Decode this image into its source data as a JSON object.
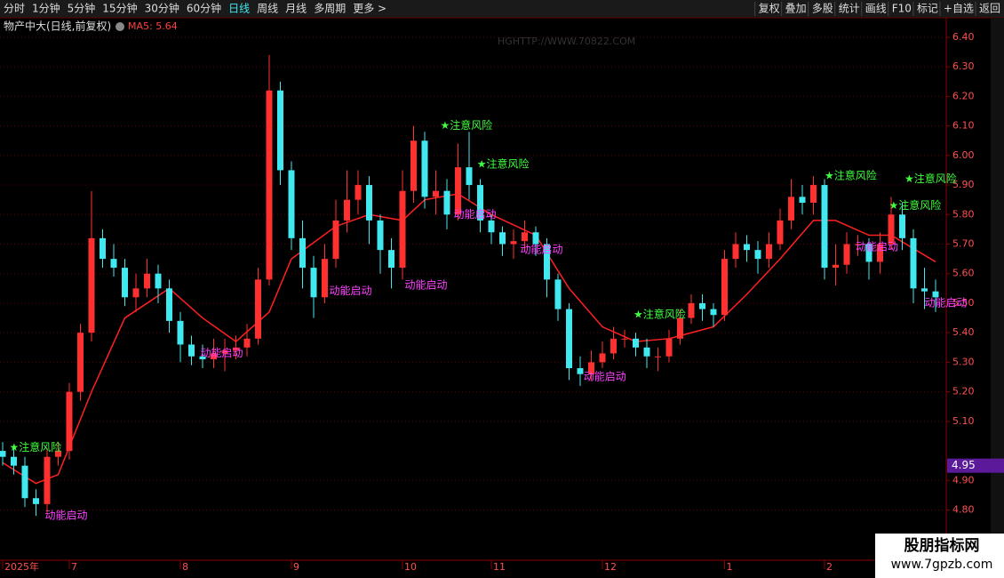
{
  "toolbar": {
    "tabs": [
      "分时",
      "1分钟",
      "5分钟",
      "15分钟",
      "30分钟",
      "60分钟",
      "日线",
      "周线",
      "月线",
      "多周期",
      "更多 >"
    ],
    "active_tab": 6,
    "buttons": [
      "复权",
      "叠加",
      "多股",
      "统计",
      "画线",
      "F10",
      "标记",
      "+自选",
      "返回"
    ]
  },
  "watermark": "HGHTTP://WWW.70822.COM",
  "logo": {
    "name": "股朋指标网",
    "url": "www.7gpzb.com"
  },
  "chart_data": {
    "type": "candlestick",
    "title": "物产中大(日线,前复权)",
    "ma_label": "MA5: 5.64",
    "ma_color": "#ff2020",
    "up_color": "#ff3030",
    "down_color": "#40e8f0",
    "categories": [
      "2025年",
      null,
      null,
      null,
      null,
      null,
      "7",
      null,
      null,
      null,
      null,
      null,
      null,
      null,
      null,
      null,
      "8",
      null,
      null,
      null,
      null,
      null,
      null,
      null,
      null,
      null,
      "9",
      null,
      null,
      null,
      null,
      null,
      null,
      null,
      null,
      null,
      "10",
      null,
      null,
      null,
      null,
      null,
      null,
      null,
      "11",
      null,
      null,
      null,
      null,
      null,
      null,
      null,
      null,
      null,
      "12",
      null,
      null,
      null,
      null,
      null,
      null,
      null,
      null,
      null,
      null,
      "1",
      null,
      null,
      null,
      null,
      null,
      null,
      null,
      null,
      "2",
      null,
      null,
      null,
      null,
      null,
      null,
      null,
      null,
      null,
      null
    ],
    "candles": [
      [
        5.0,
        5.03,
        4.95,
        4.98
      ],
      [
        4.98,
        5.01,
        4.92,
        4.95
      ],
      [
        4.95,
        4.98,
        4.81,
        4.84
      ],
      [
        4.84,
        4.87,
        4.78,
        4.82
      ],
      [
        4.82,
        5.01,
        4.79,
        4.98
      ],
      [
        4.98,
        5.03,
        4.95,
        5.0
      ],
      [
        5.0,
        5.23,
        4.97,
        5.2
      ],
      [
        5.2,
        5.43,
        5.17,
        5.4
      ],
      [
        5.4,
        5.88,
        5.37,
        5.72
      ],
      [
        5.72,
        5.75,
        5.62,
        5.65
      ],
      [
        5.65,
        5.7,
        5.59,
        5.62
      ],
      [
        5.62,
        5.65,
        5.49,
        5.52
      ],
      [
        5.52,
        5.6,
        5.47,
        5.55
      ],
      [
        5.55,
        5.65,
        5.52,
        5.6
      ],
      [
        5.6,
        5.63,
        5.5,
        5.55
      ],
      [
        5.55,
        5.58,
        5.4,
        5.44
      ],
      [
        5.44,
        5.47,
        5.3,
        5.36
      ],
      [
        5.36,
        5.39,
        5.29,
        5.32
      ],
      [
        5.32,
        5.36,
        5.28,
        5.31
      ],
      [
        5.31,
        5.38,
        5.28,
        5.33
      ],
      [
        5.33,
        5.38,
        5.27,
        5.34
      ],
      [
        5.34,
        5.39,
        5.31,
        5.35
      ],
      [
        5.35,
        5.43,
        5.32,
        5.38
      ],
      [
        5.38,
        5.62,
        5.36,
        5.58
      ],
      [
        5.58,
        6.34,
        5.56,
        6.22
      ],
      [
        6.22,
        6.25,
        5.9,
        5.95
      ],
      [
        5.95,
        5.98,
        5.68,
        5.72
      ],
      [
        5.72,
        5.78,
        5.55,
        5.62
      ],
      [
        5.62,
        5.66,
        5.45,
        5.52
      ],
      [
        5.52,
        5.7,
        5.5,
        5.65
      ],
      [
        5.65,
        5.85,
        5.62,
        5.78
      ],
      [
        5.78,
        5.95,
        5.74,
        5.85
      ],
      [
        5.85,
        5.95,
        5.8,
        5.9
      ],
      [
        5.9,
        5.93,
        5.7,
        5.78
      ],
      [
        5.78,
        5.8,
        5.6,
        5.68
      ],
      [
        5.68,
        5.72,
        5.55,
        5.62
      ],
      [
        5.62,
        5.95,
        5.58,
        5.88
      ],
      [
        5.88,
        6.1,
        5.84,
        6.05
      ],
      [
        6.05,
        6.08,
        5.82,
        5.86
      ],
      [
        5.86,
        5.95,
        5.8,
        5.88
      ],
      [
        5.88,
        5.92,
        5.75,
        5.8
      ],
      [
        5.8,
        6.04,
        5.78,
        5.96
      ],
      [
        5.96,
        6.08,
        5.85,
        5.9
      ],
      [
        5.9,
        5.92,
        5.74,
        5.78
      ],
      [
        5.78,
        5.8,
        5.7,
        5.74
      ],
      [
        5.74,
        5.76,
        5.66,
        5.7
      ],
      [
        5.7,
        5.75,
        5.65,
        5.71
      ],
      [
        5.71,
        5.78,
        5.68,
        5.74
      ],
      [
        5.74,
        5.76,
        5.66,
        5.7
      ],
      [
        5.7,
        5.72,
        5.52,
        5.58
      ],
      [
        5.58,
        5.6,
        5.44,
        5.48
      ],
      [
        5.48,
        5.5,
        5.24,
        5.28
      ],
      [
        5.28,
        5.32,
        5.22,
        5.26
      ],
      [
        5.26,
        5.34,
        5.24,
        5.3
      ],
      [
        5.3,
        5.37,
        5.28,
        5.33
      ],
      [
        5.33,
        5.42,
        5.31,
        5.38
      ],
      [
        5.38,
        5.41,
        5.35,
        5.38
      ],
      [
        5.38,
        5.4,
        5.32,
        5.35
      ],
      [
        5.35,
        5.38,
        5.28,
        5.32
      ],
      [
        5.32,
        5.35,
        5.27,
        5.32
      ],
      [
        5.32,
        5.41,
        5.3,
        5.38
      ],
      [
        5.38,
        5.48,
        5.36,
        5.45
      ],
      [
        5.45,
        5.53,
        5.43,
        5.5
      ],
      [
        5.5,
        5.53,
        5.44,
        5.48
      ],
      [
        5.48,
        5.5,
        5.42,
        5.46
      ],
      [
        5.46,
        5.68,
        5.44,
        5.65
      ],
      [
        5.65,
        5.74,
        5.62,
        5.7
      ],
      [
        5.7,
        5.73,
        5.64,
        5.68
      ],
      [
        5.68,
        5.71,
        5.6,
        5.65
      ],
      [
        5.65,
        5.74,
        5.62,
        5.7
      ],
      [
        5.7,
        5.82,
        5.68,
        5.78
      ],
      [
        5.78,
        5.92,
        5.75,
        5.86
      ],
      [
        5.86,
        5.9,
        5.8,
        5.84
      ],
      [
        5.84,
        5.93,
        5.8,
        5.9
      ],
      [
        5.9,
        5.92,
        5.58,
        5.62
      ],
      [
        5.62,
        5.7,
        5.56,
        5.63
      ],
      [
        5.63,
        5.74,
        5.6,
        5.7
      ],
      [
        5.7,
        5.73,
        5.66,
        5.7
      ],
      [
        5.7,
        5.72,
        5.58,
        5.64
      ],
      [
        5.64,
        5.74,
        5.6,
        5.7
      ],
      [
        5.7,
        5.86,
        5.68,
        5.8
      ],
      [
        5.8,
        5.84,
        5.68,
        5.72
      ],
      [
        5.72,
        5.75,
        5.5,
        5.55
      ],
      [
        5.55,
        5.62,
        5.48,
        5.54
      ],
      [
        5.54,
        5.58,
        5.47,
        5.52
      ]
    ],
    "ma_x": [
      0,
      3,
      5,
      8,
      11,
      15,
      18,
      21,
      24,
      26,
      30,
      33,
      36,
      38,
      41,
      44,
      48,
      51,
      54,
      57,
      60,
      64,
      67,
      70,
      73,
      75,
      78,
      80,
      84
    ],
    "ma_values": [
      4.96,
      4.89,
      4.92,
      5.2,
      5.45,
      5.55,
      5.45,
      5.37,
      5.47,
      5.65,
      5.76,
      5.8,
      5.78,
      5.85,
      5.87,
      5.8,
      5.73,
      5.55,
      5.42,
      5.37,
      5.38,
      5.42,
      5.53,
      5.65,
      5.78,
      5.78,
      5.73,
      5.73,
      5.64
    ],
    "price_tag": 4.95,
    "annotations": [
      {
        "text": "★注意风险",
        "x": 0.6,
        "y": 5.01,
        "color": "#40ff40"
      },
      {
        "text": "★注意风险",
        "x": 39.4,
        "y": 6.1,
        "color": "#40ff40"
      },
      {
        "text": "★注意风险",
        "x": 42.7,
        "y": 5.97,
        "color": "#40ff40"
      },
      {
        "text": "★注意风险",
        "x": 56.8,
        "y": 5.46,
        "color": "#40ff40"
      },
      {
        "text": "★注意风险",
        "x": 74,
        "y": 5.93,
        "color": "#40ff40"
      },
      {
        "text": "★注意风险",
        "x": 81.2,
        "y": 5.92,
        "color": "#40ff40"
      },
      {
        "text": "★注意风险",
        "x": 79.8,
        "y": 5.83,
        "color": "#40ff40"
      },
      {
        "text": "动能启动",
        "x": 3.8,
        "y": 4.78,
        "color": "#ff40ff"
      },
      {
        "text": "动能启动",
        "x": 17.8,
        "y": 5.33,
        "color": "#ff40ff"
      },
      {
        "text": "动能启动",
        "x": 29.4,
        "y": 5.54,
        "color": "#ff40ff"
      },
      {
        "text": "动能启动",
        "x": 36.2,
        "y": 5.56,
        "color": "#ff40ff"
      },
      {
        "text": "动能启动",
        "x": 40.6,
        "y": 5.8,
        "color": "#ff40ff"
      },
      {
        "text": "动能启动",
        "x": 46.6,
        "y": 5.68,
        "color": "#ff40ff"
      },
      {
        "text": "动能启动",
        "x": 52.3,
        "y": 5.25,
        "color": "#ff40ff"
      },
      {
        "text": "动能启动",
        "x": 76.8,
        "y": 5.69,
        "color": "#ff40ff"
      },
      {
        "text": "动能启动",
        "x": 83,
        "y": 5.5,
        "color": "#ff40ff"
      }
    ],
    "ylim": [
      4.63,
      6.46
    ],
    "yticks": [
      {
        "value": 6.4,
        "label": "6.40"
      },
      {
        "value": 6.3,
        "label": "6.30"
      },
      {
        "value": 6.2,
        "label": "6.20"
      },
      {
        "value": 6.1,
        "label": "6.10"
      },
      {
        "value": 6.0,
        "label": "6.00"
      },
      {
        "value": 5.9,
        "label": "5.90"
      },
      {
        "value": 5.8,
        "label": "5.80"
      },
      {
        "value": 5.7,
        "label": "5.70"
      },
      {
        "value": 5.6,
        "label": "5.60"
      },
      {
        "value": 5.5,
        "label": "5.50"
      },
      {
        "value": 5.4,
        "label": "5.40"
      },
      {
        "value": 5.3,
        "label": "5.30"
      },
      {
        "value": 5.2,
        "label": "5.20"
      },
      {
        "value": 5.1,
        "label": "5.10"
      },
      {
        "value": 4.9,
        "label": "4.90"
      },
      {
        "value": 4.8,
        "label": "4.80"
      }
    ],
    "grid": true
  }
}
